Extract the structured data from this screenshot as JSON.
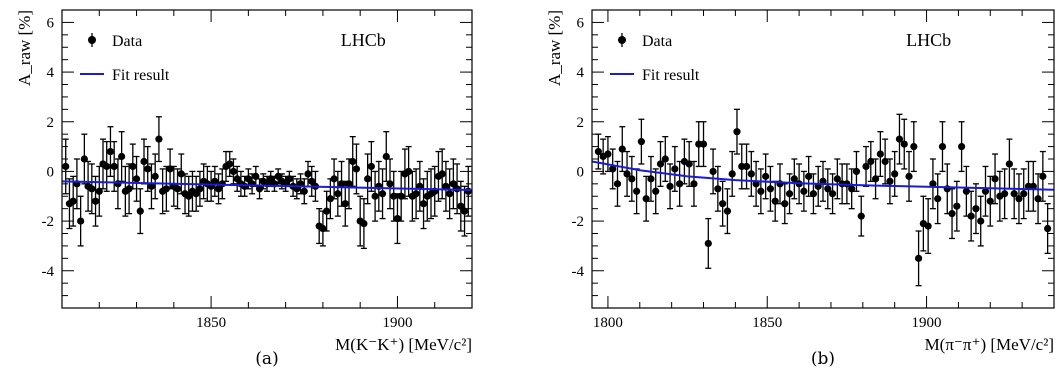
{
  "colors": {
    "data": "#000000",
    "fit": "#1a1adc",
    "frame": "#000000"
  },
  "chart_data": [
    {
      "type": "scatter",
      "panel_label": "(a)",
      "xlabel": "M(K⁻K⁺) [MeV/c²]",
      "ylabel": "A_raw [%]",
      "brand_label": "LHCb",
      "xlim": [
        1810,
        1920
      ],
      "ylim": [
        -5.5,
        6.5
      ],
      "xticks": [
        1850,
        1900
      ],
      "yticks": [
        -4,
        -2,
        0,
        2,
        4,
        6
      ],
      "legend": {
        "position": "top-left",
        "entries": [
          "Data",
          "Fit result"
        ]
      },
      "fit": {
        "x": [
          1810,
          1920
        ],
        "y": [
          -0.4,
          -0.75
        ]
      },
      "data": [
        {
          "x": 1811,
          "y": 0.2,
          "err": 1.1
        },
        {
          "x": 1812,
          "y": -1.3,
          "err": 1.0
        },
        {
          "x": 1813,
          "y": -1.2,
          "err": 1.0
        },
        {
          "x": 1814,
          "y": -0.5,
          "err": 1.0
        },
        {
          "x": 1815,
          "y": -2.0,
          "err": 1.0
        },
        {
          "x": 1816,
          "y": 0.5,
          "err": 1.0
        },
        {
          "x": 1817,
          "y": -0.6,
          "err": 1.0
        },
        {
          "x": 1818,
          "y": -0.7,
          "err": 1.0
        },
        {
          "x": 1819,
          "y": -1.2,
          "err": 1.0
        },
        {
          "x": 1820,
          "y": -0.8,
          "err": 1.0
        },
        {
          "x": 1821,
          "y": 0.3,
          "err": 1.0
        },
        {
          "x": 1822,
          "y": 0.2,
          "err": 1.0
        },
        {
          "x": 1823,
          "y": 0.8,
          "err": 1.0
        },
        {
          "x": 1824,
          "y": 0.2,
          "err": 1.0
        },
        {
          "x": 1825,
          "y": -0.5,
          "err": 1.0
        },
        {
          "x": 1826,
          "y": 0.6,
          "err": 1.0
        },
        {
          "x": 1827,
          "y": -0.8,
          "err": 1.0
        },
        {
          "x": 1828,
          "y": -0.7,
          "err": 1.0
        },
        {
          "x": 1829,
          "y": 0.2,
          "err": 0.9
        },
        {
          "x": 1830,
          "y": -0.3,
          "err": 0.9
        },
        {
          "x": 1831,
          "y": -1.6,
          "err": 0.9
        },
        {
          "x": 1832,
          "y": 0.4,
          "err": 0.9
        },
        {
          "x": 1833,
          "y": 0.1,
          "err": 0.9
        },
        {
          "x": 1834,
          "y": -0.6,
          "err": 0.9
        },
        {
          "x": 1835,
          "y": -0.2,
          "err": 0.9
        },
        {
          "x": 1836,
          "y": 1.3,
          "err": 0.9
        },
        {
          "x": 1837,
          "y": -0.8,
          "err": 0.9
        },
        {
          "x": 1838,
          "y": -0.7,
          "err": 0.9
        },
        {
          "x": 1839,
          "y": 0.1,
          "err": 0.8
        },
        {
          "x": 1840,
          "y": -0.6,
          "err": 0.8
        },
        {
          "x": 1841,
          "y": -0.7,
          "err": 0.8
        },
        {
          "x": 1842,
          "y": -0.1,
          "err": 0.8
        },
        {
          "x": 1843,
          "y": -0.9,
          "err": 0.8
        },
        {
          "x": 1844,
          "y": -1.0,
          "err": 0.8
        },
        {
          "x": 1845,
          "y": -0.8,
          "err": 0.8
        },
        {
          "x": 1846,
          "y": -0.9,
          "err": 0.7
        },
        {
          "x": 1847,
          "y": -0.7,
          "err": 0.7
        },
        {
          "x": 1848,
          "y": -0.4,
          "err": 0.7
        },
        {
          "x": 1849,
          "y": -0.5,
          "err": 0.7
        },
        {
          "x": 1850,
          "y": -0.6,
          "err": 0.6
        },
        {
          "x": 1851,
          "y": -0.4,
          "err": 0.6
        },
        {
          "x": 1852,
          "y": -0.7,
          "err": 0.6
        },
        {
          "x": 1853,
          "y": -0.5,
          "err": 0.6
        },
        {
          "x": 1854,
          "y": 0.2,
          "err": 0.6
        },
        {
          "x": 1855,
          "y": 0.3,
          "err": 0.5
        },
        {
          "x": 1856,
          "y": 0.0,
          "err": 0.5
        },
        {
          "x": 1857,
          "y": -0.3,
          "err": 0.5
        },
        {
          "x": 1858,
          "y": -0.5,
          "err": 0.5
        },
        {
          "x": 1859,
          "y": -0.6,
          "err": 0.4
        },
        {
          "x": 1860,
          "y": -0.3,
          "err": 0.4
        },
        {
          "x": 1861,
          "y": -0.5,
          "err": 0.4
        },
        {
          "x": 1862,
          "y": -0.2,
          "err": 0.4
        },
        {
          "x": 1863,
          "y": -0.7,
          "err": 0.4
        },
        {
          "x": 1864,
          "y": -0.4,
          "err": 0.3
        },
        {
          "x": 1865,
          "y": -0.5,
          "err": 0.3
        },
        {
          "x": 1866,
          "y": -0.3,
          "err": 0.3
        },
        {
          "x": 1867,
          "y": -0.5,
          "err": 0.3
        },
        {
          "x": 1868,
          "y": -0.2,
          "err": 0.3
        },
        {
          "x": 1869,
          "y": -0.4,
          "err": 0.3
        },
        {
          "x": 1870,
          "y": -0.5,
          "err": 0.3
        },
        {
          "x": 1871,
          "y": -0.3,
          "err": 0.3
        },
        {
          "x": 1872,
          "y": -0.6,
          "err": 0.4
        },
        {
          "x": 1873,
          "y": -0.7,
          "err": 0.4
        },
        {
          "x": 1874,
          "y": -0.5,
          "err": 0.4
        },
        {
          "x": 1875,
          "y": -0.8,
          "err": 0.5
        },
        {
          "x": 1876,
          "y": -0.1,
          "err": 0.5
        },
        {
          "x": 1877,
          "y": -0.4,
          "err": 0.6
        },
        {
          "x": 1878,
          "y": -0.6,
          "err": 0.6
        },
        {
          "x": 1879,
          "y": -2.2,
          "err": 0.7
        },
        {
          "x": 1880,
          "y": -2.3,
          "err": 0.7
        },
        {
          "x": 1881,
          "y": -1.6,
          "err": 0.8
        },
        {
          "x": 1882,
          "y": -1.1,
          "err": 0.8
        },
        {
          "x": 1883,
          "y": -0.3,
          "err": 0.8
        },
        {
          "x": 1884,
          "y": -0.9,
          "err": 0.9
        },
        {
          "x": 1885,
          "y": -0.5,
          "err": 0.9
        },
        {
          "x": 1886,
          "y": -1.3,
          "err": 0.9
        },
        {
          "x": 1887,
          "y": -0.5,
          "err": 1.0
        },
        {
          "x": 1888,
          "y": 0.4,
          "err": 1.0
        },
        {
          "x": 1889,
          "y": 0.1,
          "err": 1.0
        },
        {
          "x": 1890,
          "y": -2.0,
          "err": 1.0
        },
        {
          "x": 1891,
          "y": -2.1,
          "err": 1.0
        },
        {
          "x": 1892,
          "y": -0.3,
          "err": 1.0
        },
        {
          "x": 1893,
          "y": 0.2,
          "err": 1.0
        },
        {
          "x": 1894,
          "y": -1.0,
          "err": 1.0
        },
        {
          "x": 1895,
          "y": -0.6,
          "err": 1.0
        },
        {
          "x": 1896,
          "y": -0.9,
          "err": 1.0
        },
        {
          "x": 1897,
          "y": 0.6,
          "err": 1.0
        },
        {
          "x": 1898,
          "y": -0.5,
          "err": 1.0
        },
        {
          "x": 1899,
          "y": -1.0,
          "err": 1.0
        },
        {
          "x": 1900,
          "y": -1.9,
          "err": 1.0
        },
        {
          "x": 1901,
          "y": -1.0,
          "err": 1.0
        },
        {
          "x": 1902,
          "y": -0.1,
          "err": 1.0
        },
        {
          "x": 1903,
          "y": 0.0,
          "err": 1.0
        },
        {
          "x": 1904,
          "y": -1.0,
          "err": 1.0
        },
        {
          "x": 1905,
          "y": -0.9,
          "err": 1.0
        },
        {
          "x": 1906,
          "y": -0.6,
          "err": 1.0
        },
        {
          "x": 1907,
          "y": -1.3,
          "err": 1.0
        },
        {
          "x": 1908,
          "y": -1.0,
          "err": 1.0
        },
        {
          "x": 1909,
          "y": -0.9,
          "err": 1.0
        },
        {
          "x": 1910,
          "y": -0.8,
          "err": 1.0
        },
        {
          "x": 1911,
          "y": -0.2,
          "err": 1.0
        },
        {
          "x": 1912,
          "y": -0.1,
          "err": 1.0
        },
        {
          "x": 1913,
          "y": -0.6,
          "err": 1.0
        },
        {
          "x": 1914,
          "y": -0.9,
          "err": 1.0
        },
        {
          "x": 1915,
          "y": -0.5,
          "err": 1.0
        },
        {
          "x": 1916,
          "y": -0.7,
          "err": 1.0
        },
        {
          "x": 1917,
          "y": -1.4,
          "err": 1.0
        },
        {
          "x": 1918,
          "y": -1.6,
          "err": 1.0
        },
        {
          "x": 1919,
          "y": -0.8,
          "err": 1.0
        }
      ]
    },
    {
      "type": "scatter",
      "panel_label": "(b)",
      "xlabel": "M(π⁻π⁺) [MeV/c²]",
      "ylabel": "A_raw [%]",
      "brand_label": "LHCb",
      "xlim": [
        1795,
        1940
      ],
      "ylim": [
        -5.5,
        6.5
      ],
      "xticks": [
        1800,
        1850,
        1900
      ],
      "yticks": [
        -4,
        -2,
        0,
        2,
        4,
        6
      ],
      "legend": {
        "position": "top-left",
        "entries": [
          "Data",
          "Fit result"
        ]
      },
      "fit": {
        "x": [
          1795,
          1810,
          1825,
          1840,
          1860,
          1880,
          1900,
          1920,
          1940
        ],
        "y": [
          0.4,
          0.05,
          -0.2,
          -0.35,
          -0.48,
          -0.56,
          -0.62,
          -0.68,
          -0.74
        ]
      },
      "data": [
        {
          "x": 1797,
          "y": 0.8,
          "err": 0.7
        },
        {
          "x": 1798.5,
          "y": 0.6,
          "err": 0.7
        },
        {
          "x": 1800,
          "y": 0.7,
          "err": 0.7
        },
        {
          "x": 1801.5,
          "y": 0.1,
          "err": 0.8
        },
        {
          "x": 1803,
          "y": -0.5,
          "err": 0.9
        },
        {
          "x": 1804.5,
          "y": 0.9,
          "err": 0.9
        },
        {
          "x": 1806,
          "y": -0.1,
          "err": 0.9
        },
        {
          "x": 1807.5,
          "y": -0.3,
          "err": 0.9
        },
        {
          "x": 1809,
          "y": -0.8,
          "err": 0.9
        },
        {
          "x": 1810.5,
          "y": 1.2,
          "err": 0.9
        },
        {
          "x": 1812,
          "y": -1.1,
          "err": 0.9
        },
        {
          "x": 1813.5,
          "y": -0.3,
          "err": 0.9
        },
        {
          "x": 1815,
          "y": -0.8,
          "err": 0.9
        },
        {
          "x": 1816.5,
          "y": 0.3,
          "err": 0.9
        },
        {
          "x": 1818,
          "y": 0.5,
          "err": 0.9
        },
        {
          "x": 1819.5,
          "y": -0.6,
          "err": 0.9
        },
        {
          "x": 1821,
          "y": 0.1,
          "err": 0.9
        },
        {
          "x": 1822.5,
          "y": -0.5,
          "err": 0.9
        },
        {
          "x": 1824,
          "y": 0.4,
          "err": 0.9
        },
        {
          "x": 1825.5,
          "y": 0.3,
          "err": 0.9
        },
        {
          "x": 1827,
          "y": -0.5,
          "err": 0.9
        },
        {
          "x": 1828.5,
          "y": 1.1,
          "err": 0.9
        },
        {
          "x": 1830,
          "y": 1.1,
          "err": 0.9
        },
        {
          "x": 1831.5,
          "y": -2.9,
          "err": 1.0
        },
        {
          "x": 1833,
          "y": 0.0,
          "err": 0.9
        },
        {
          "x": 1834.5,
          "y": -0.7,
          "err": 0.9
        },
        {
          "x": 1836,
          "y": -1.3,
          "err": 0.9
        },
        {
          "x": 1837.5,
          "y": -1.6,
          "err": 0.9
        },
        {
          "x": 1839,
          "y": -0.1,
          "err": 0.9
        },
        {
          "x": 1840.5,
          "y": 1.6,
          "err": 0.9
        },
        {
          "x": 1842,
          "y": 0.2,
          "err": 0.9
        },
        {
          "x": 1843.5,
          "y": 0.2,
          "err": 0.9
        },
        {
          "x": 1845,
          "y": -0.1,
          "err": 0.9
        },
        {
          "x": 1846.5,
          "y": -0.5,
          "err": 0.9
        },
        {
          "x": 1848,
          "y": -0.8,
          "err": 0.9
        },
        {
          "x": 1849.5,
          "y": -0.2,
          "err": 0.9
        },
        {
          "x": 1851,
          "y": -0.7,
          "err": 0.9
        },
        {
          "x": 1852.5,
          "y": -1.2,
          "err": 0.8
        },
        {
          "x": 1854,
          "y": -0.5,
          "err": 0.8
        },
        {
          "x": 1855.5,
          "y": -1.3,
          "err": 0.8
        },
        {
          "x": 1857,
          "y": -0.9,
          "err": 0.8
        },
        {
          "x": 1858.5,
          "y": -0.3,
          "err": 0.8
        },
        {
          "x": 1860,
          "y": -0.5,
          "err": 0.8
        },
        {
          "x": 1861.5,
          "y": -0.8,
          "err": 0.8
        },
        {
          "x": 1863,
          "y": -0.2,
          "err": 0.8
        },
        {
          "x": 1864.5,
          "y": -0.9,
          "err": 0.8
        },
        {
          "x": 1866,
          "y": -0.6,
          "err": 0.8
        },
        {
          "x": 1867.5,
          "y": -0.4,
          "err": 0.8
        },
        {
          "x": 1869,
          "y": -0.7,
          "err": 0.8
        },
        {
          "x": 1870.5,
          "y": -0.9,
          "err": 0.8
        },
        {
          "x": 1872,
          "y": -0.3,
          "err": 0.8
        },
        {
          "x": 1873.5,
          "y": -0.5,
          "err": 0.8
        },
        {
          "x": 1875,
          "y": -0.5,
          "err": 0.8
        },
        {
          "x": 1876.5,
          "y": -0.7,
          "err": 0.8
        },
        {
          "x": 1878,
          "y": 0.0,
          "err": 0.8
        },
        {
          "x": 1879.5,
          "y": -1.8,
          "err": 0.8
        },
        {
          "x": 1881,
          "y": 0.2,
          "err": 0.8
        },
        {
          "x": 1882.5,
          "y": 0.4,
          "err": 0.8
        },
        {
          "x": 1884,
          "y": -0.3,
          "err": 0.8
        },
        {
          "x": 1885.5,
          "y": 0.7,
          "err": 0.9
        },
        {
          "x": 1887,
          "y": 0.4,
          "err": 0.9
        },
        {
          "x": 1888.5,
          "y": -0.4,
          "err": 0.9
        },
        {
          "x": 1890,
          "y": -0.1,
          "err": 0.9
        },
        {
          "x": 1891.5,
          "y": 1.3,
          "err": 1.0
        },
        {
          "x": 1893,
          "y": 1.1,
          "err": 1.0
        },
        {
          "x": 1894.5,
          "y": -0.2,
          "err": 1.0
        },
        {
          "x": 1896,
          "y": 1.0,
          "err": 1.0
        },
        {
          "x": 1897.5,
          "y": -3.5,
          "err": 1.1
        },
        {
          "x": 1899,
          "y": -2.1,
          "err": 1.1
        },
        {
          "x": 1900.5,
          "y": -2.2,
          "err": 1.1
        },
        {
          "x": 1902,
          "y": -0.5,
          "err": 1.0
        },
        {
          "x": 1903.5,
          "y": -1.1,
          "err": 1.0
        },
        {
          "x": 1905,
          "y": 1.0,
          "err": 1.0
        },
        {
          "x": 1906.5,
          "y": -0.7,
          "err": 1.0
        },
        {
          "x": 1908,
          "y": -1.7,
          "err": 1.0
        },
        {
          "x": 1909.5,
          "y": -1.4,
          "err": 1.0
        },
        {
          "x": 1911,
          "y": 1.0,
          "err": 1.0
        },
        {
          "x": 1912.5,
          "y": -0.8,
          "err": 1.0
        },
        {
          "x": 1914,
          "y": -1.8,
          "err": 1.0
        },
        {
          "x": 1915.5,
          "y": -1.5,
          "err": 1.0
        },
        {
          "x": 1917,
          "y": -2.0,
          "err": 1.0
        },
        {
          "x": 1918.5,
          "y": -0.8,
          "err": 1.0
        },
        {
          "x": 1920,
          "y": -1.2,
          "err": 1.0
        },
        {
          "x": 1921.5,
          "y": -0.3,
          "err": 1.0
        },
        {
          "x": 1923,
          "y": -1.0,
          "err": 1.0
        },
        {
          "x": 1924.5,
          "y": -0.9,
          "err": 1.0
        },
        {
          "x": 1926,
          "y": 0.3,
          "err": 1.0
        },
        {
          "x": 1927.5,
          "y": -0.9,
          "err": 1.0
        },
        {
          "x": 1929,
          "y": -1.1,
          "err": 1.0
        },
        {
          "x": 1930.5,
          "y": -0.9,
          "err": 1.0
        },
        {
          "x": 1932,
          "y": -0.6,
          "err": 1.0
        },
        {
          "x": 1933.5,
          "y": -0.6,
          "err": 1.0
        },
        {
          "x": 1935,
          "y": -1.1,
          "err": 1.0
        },
        {
          "x": 1936.5,
          "y": -0.2,
          "err": 1.0
        },
        {
          "x": 1938,
          "y": -2.3,
          "err": 1.0
        }
      ]
    }
  ]
}
